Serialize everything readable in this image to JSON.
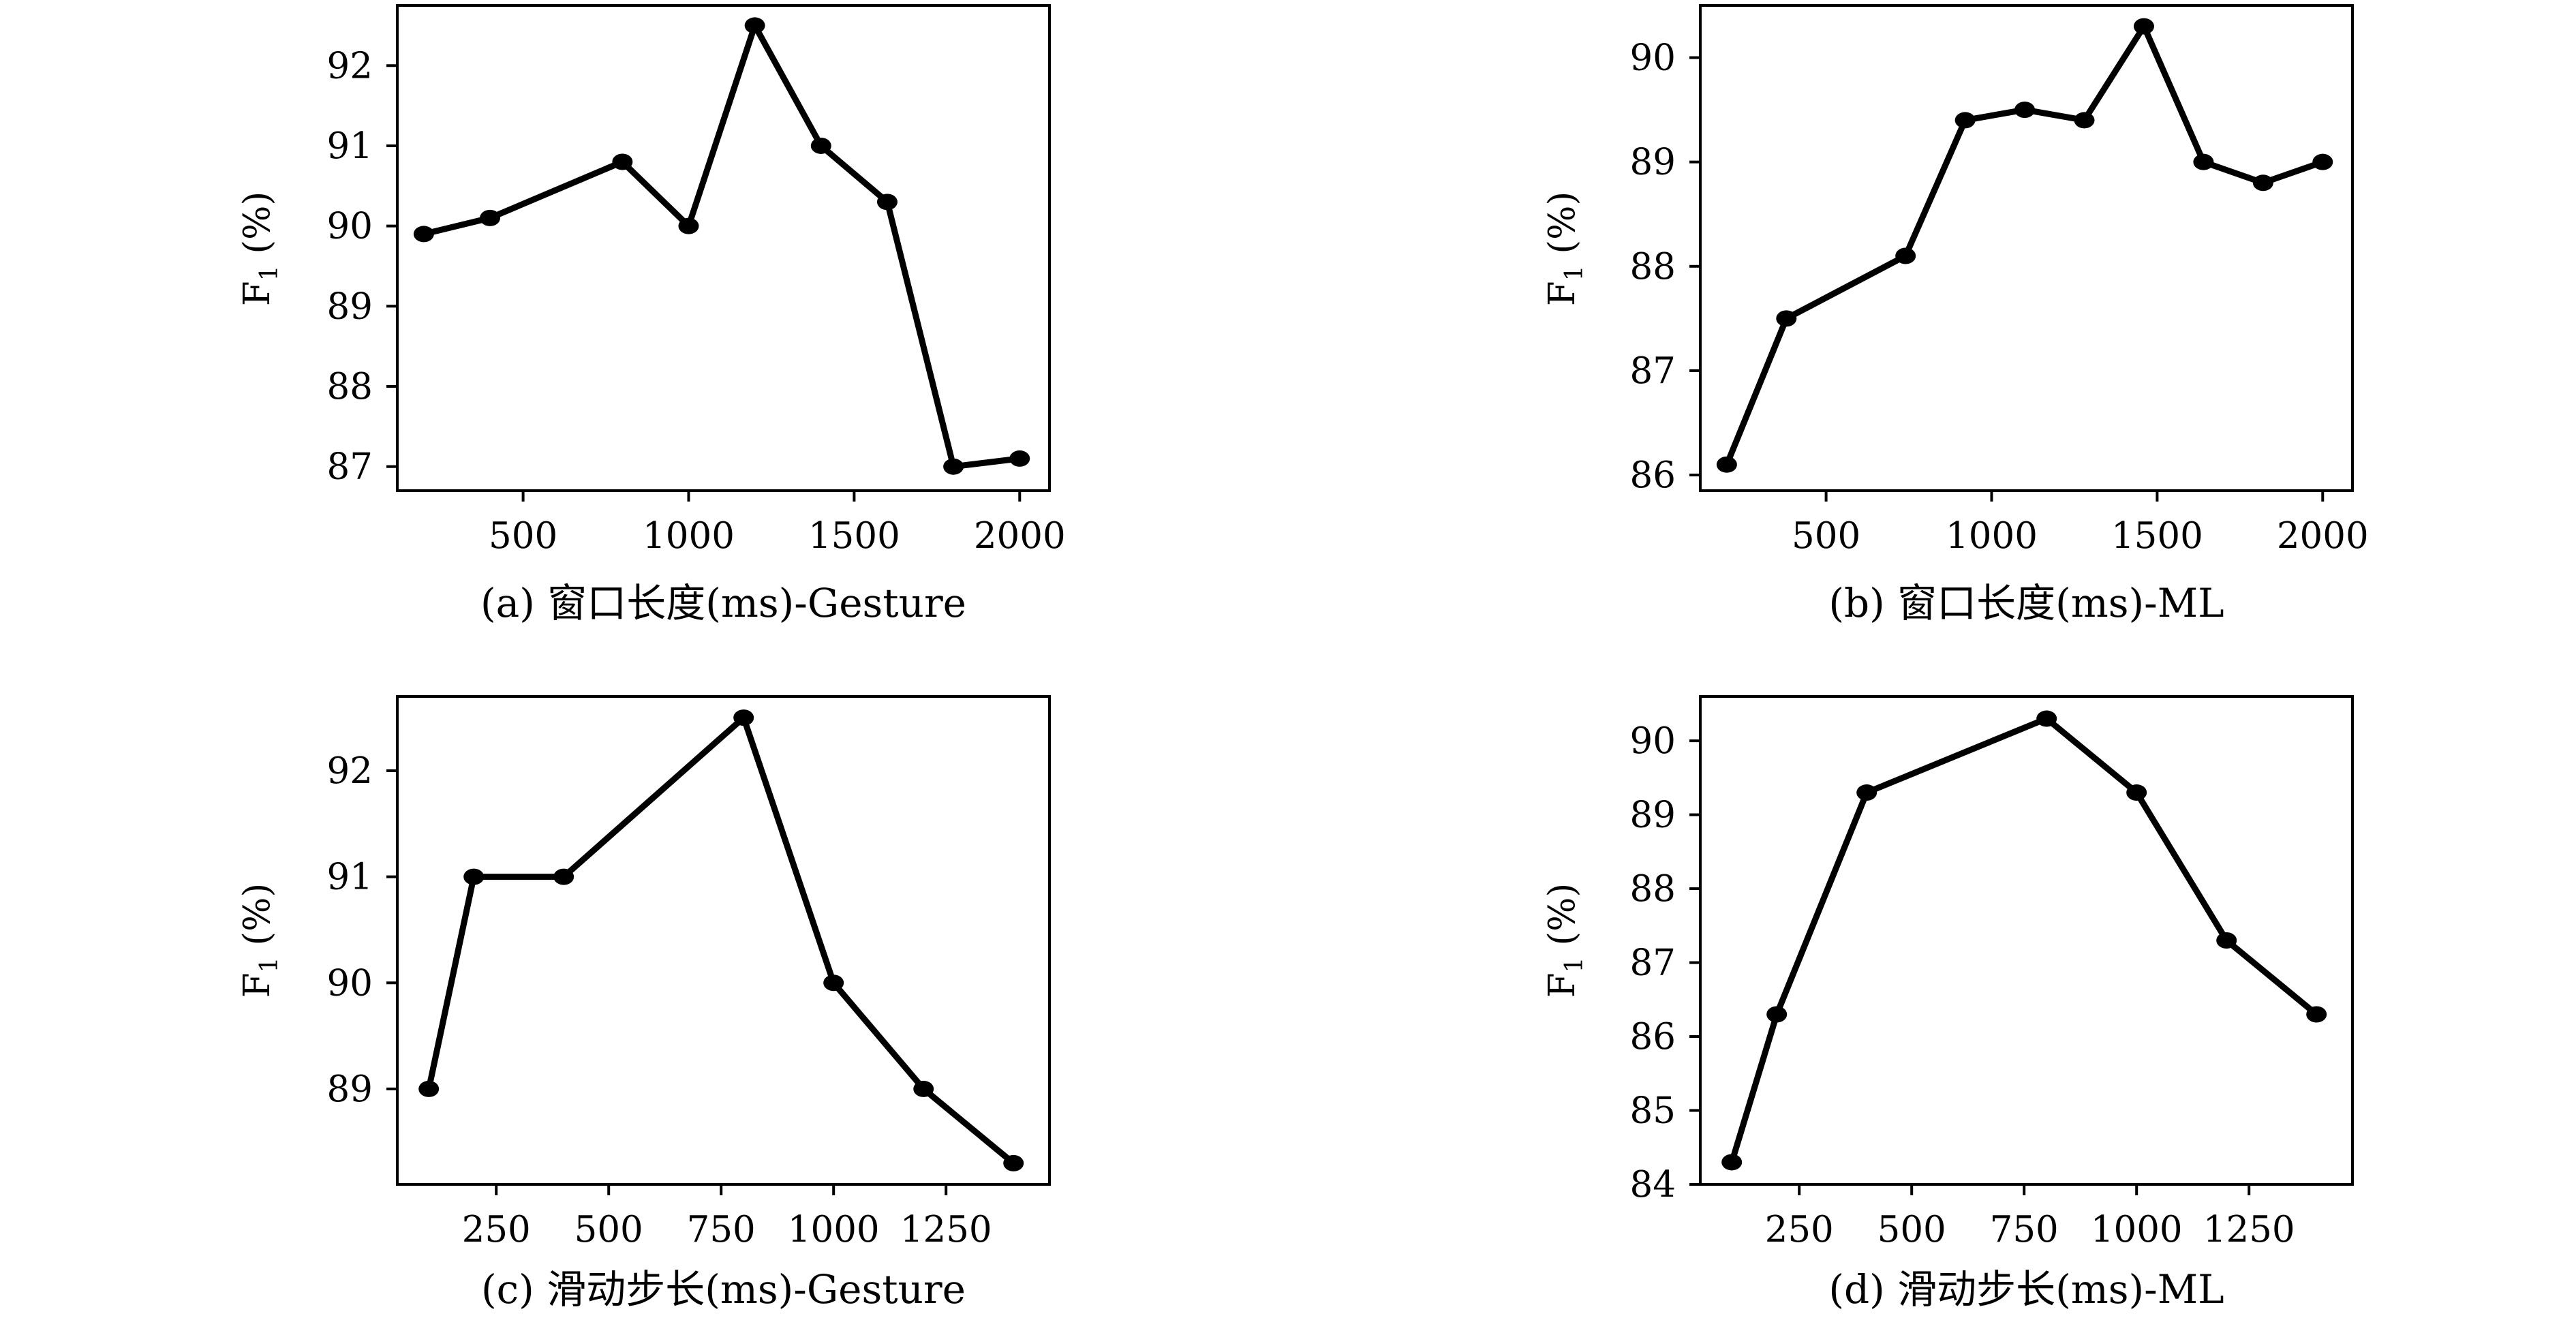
{
  "chart_data": [
    {
      "type": "line",
      "caption": "(a) 窗口长度(ms)-Gesture",
      "xlabel": "",
      "ylabel": "F1 (%)",
      "ylabel_main": "F",
      "ylabel_sub": "1",
      "ylabel_unit": " (%)",
      "xlim": [
        120,
        2090
      ],
      "ylim": [
        86.7,
        92.75
      ],
      "xticks": [
        500,
        1000,
        1500,
        2000
      ],
      "yticks": [
        87,
        88,
        89,
        90,
        91,
        92
      ],
      "grid": false,
      "color": "#000000",
      "x": [
        200,
        400,
        800,
        1000,
        1200,
        1400,
        1600,
        1800,
        2000
      ],
      "y": [
        89.9,
        90.1,
        90.8,
        90.0,
        92.5,
        91.0,
        90.3,
        87.0,
        87.1
      ]
    },
    {
      "type": "line",
      "caption": "(b) 窗口长度(ms)-ML",
      "xlabel": "",
      "ylabel": "F1 (%)",
      "ylabel_main": "F",
      "ylabel_sub": "1",
      "ylabel_unit": " (%)",
      "xlim": [
        120,
        2090
      ],
      "ylim": [
        85.85,
        90.5
      ],
      "xticks": [
        500,
        1000,
        1500,
        2000
      ],
      "yticks": [
        86,
        87,
        88,
        89,
        90
      ],
      "grid": false,
      "color": "#000000",
      "x": [
        200,
        380,
        740,
        920,
        1100,
        1280,
        1460,
        1640,
        1820,
        2000
      ],
      "y": [
        86.1,
        87.5,
        88.1,
        89.4,
        89.5,
        89.4,
        90.3,
        89.0,
        88.8,
        89.0
      ]
    },
    {
      "type": "line",
      "caption": "(c) 滑动步长(ms)-Gesture",
      "xlabel": "",
      "ylabel": "F1 (%)",
      "ylabel_main": "F",
      "ylabel_sub": "1",
      "ylabel_unit": " (%)",
      "xlim": [
        30,
        1480
      ],
      "ylim": [
        88.1,
        92.7
      ],
      "xticks": [
        250,
        500,
        750,
        1000,
        1250
      ],
      "yticks": [
        89,
        90,
        91,
        92
      ],
      "grid": false,
      "color": "#000000",
      "x": [
        100,
        200,
        400,
        800,
        1000,
        1200,
        1400
      ],
      "y": [
        89.0,
        91.0,
        91.0,
        92.5,
        90.0,
        89.0,
        88.3
      ]
    },
    {
      "type": "line",
      "caption": "(d) 滑动步长(ms)-ML",
      "xlabel": "",
      "ylabel": "F1 (%)",
      "ylabel_main": "F",
      "ylabel_sub": "1",
      "ylabel_unit": " (%)",
      "xlim": [
        30,
        1480
      ],
      "ylim": [
        84.0,
        90.6
      ],
      "xticks": [
        250,
        500,
        750,
        1000,
        1250
      ],
      "yticks": [
        84,
        85,
        86,
        87,
        88,
        89,
        90
      ],
      "grid": false,
      "color": "#000000",
      "x": [
        100,
        200,
        400,
        800,
        1000,
        1200,
        1400
      ],
      "y": [
        84.3,
        86.3,
        89.3,
        90.3,
        89.3,
        87.3,
        86.3
      ]
    }
  ]
}
